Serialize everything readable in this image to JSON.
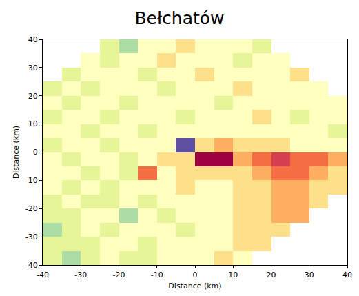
{
  "chart_data": {
    "type": "heatmap",
    "title": "Bełchatów",
    "xlabel": "Distance (km)",
    "ylabel": "Distance (km)",
    "x": [
      -37.5,
      -32.5,
      -27.5,
      -22.5,
      -17.5,
      -12.5,
      -7.5,
      -2.5,
      2.5,
      7.5,
      12.5,
      17.5,
      22.5,
      27.5,
      32.5,
      37.5
    ],
    "y": [
      -37.5,
      -32.5,
      -27.5,
      -22.5,
      -17.5,
      -12.5,
      -7.5,
      -2.5,
      2.5,
      7.5,
      12.5,
      17.5,
      22.5,
      27.5,
      32.5,
      37.5
    ],
    "z": [
      [
        4,
        3,
        4,
        5,
        4,
        4,
        5,
        5,
        5,
        6,
        5,
        null,
        null,
        null,
        null,
        null
      ],
      [
        4,
        4,
        4,
        5,
        5,
        4,
        5,
        5,
        5,
        5,
        6,
        6,
        null,
        null,
        null,
        null
      ],
      [
        3,
        4,
        5,
        4,
        5,
        5,
        5,
        4,
        5,
        5,
        6,
        6,
        6,
        null,
        null,
        null
      ],
      [
        4,
        4,
        5,
        5,
        3,
        5,
        4,
        5,
        5,
        5,
        6,
        6,
        7,
        7,
        null,
        null
      ],
      [
        4,
        5,
        4,
        4,
        5,
        4,
        5,
        5,
        5,
        5,
        6,
        6,
        7,
        7,
        6,
        null
      ],
      [
        5,
        4,
        5,
        4,
        5,
        5,
        5,
        6,
        5,
        5,
        6,
        6,
        7,
        7,
        6,
        6
      ],
      [
        5,
        5,
        4,
        5,
        4,
        8,
        5,
        6,
        6,
        6,
        6,
        7,
        8,
        8,
        7,
        6
      ],
      [
        5,
        4,
        5,
        5,
        4,
        5,
        6,
        6,
        10,
        10,
        7,
        8,
        9,
        8,
        8,
        7
      ],
      [
        4,
        5,
        5,
        4,
        5,
        5,
        5,
        0,
        6,
        7,
        6,
        6,
        6,
        5,
        5,
        5
      ],
      [
        5,
        5,
        4,
        5,
        5,
        4,
        5,
        5,
        5,
        5,
        5,
        5,
        5,
        5,
        5,
        4
      ],
      [
        4,
        5,
        5,
        4,
        5,
        5,
        5,
        4,
        5,
        5,
        5,
        6,
        5,
        4,
        5,
        5
      ],
      [
        5,
        4,
        5,
        5,
        4,
        5,
        5,
        5,
        5,
        4,
        5,
        5,
        5,
        5,
        5,
        5
      ],
      [
        4,
        5,
        4,
        5,
        5,
        5,
        4,
        5,
        5,
        5,
        6,
        5,
        5,
        5,
        5,
        null
      ],
      [
        null,
        4,
        5,
        5,
        5,
        4,
        5,
        5,
        6,
        5,
        5,
        5,
        5,
        6,
        null,
        null
      ],
      [
        null,
        null,
        5,
        4,
        5,
        5,
        6,
        5,
        5,
        5,
        4,
        5,
        5,
        null,
        null,
        null
      ],
      [
        null,
        null,
        null,
        4,
        3,
        5,
        5,
        6,
        5,
        5,
        5,
        4,
        null,
        null,
        null,
        null
      ]
    ],
    "xlim": [
      -40,
      40
    ],
    "ylim": [
      -40,
      40
    ],
    "xticks": [
      -40,
      -30,
      -20,
      -10,
      0,
      10,
      20,
      30,
      40
    ],
    "yticks": [
      -40,
      -30,
      -20,
      -10,
      0,
      10,
      20,
      30,
      40
    ],
    "grid": false
  }
}
